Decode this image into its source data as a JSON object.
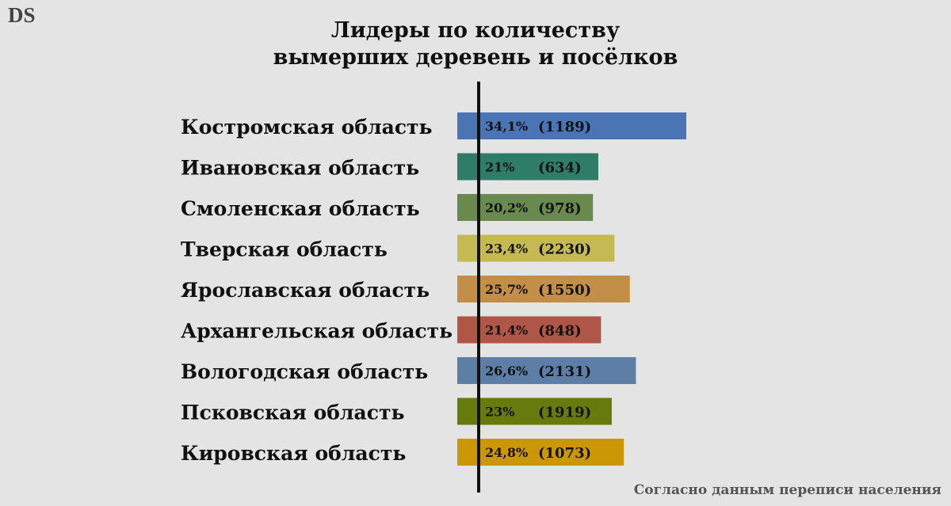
{
  "logo": "DS",
  "source_note": "Согласно данным переписи населения",
  "chart_data": {
    "type": "bar",
    "orientation": "horizontal",
    "title_lines": [
      "Лидеры по количеству",
      "вымерших деревень и посёлков"
    ],
    "categories": [
      "Костромская область",
      "Ивановская область",
      "Смоленская область",
      "Тверская область",
      "Ярославская область",
      "Архангельская область",
      "Вологодская область",
      "Псковская область",
      "Кировская область"
    ],
    "values": [
      34.1,
      21,
      20.2,
      23.4,
      25.7,
      21.4,
      26.6,
      23,
      24.8
    ],
    "counts": [
      1189,
      634,
      978,
      2230,
      1550,
      848,
      2131,
      1919,
      1073
    ],
    "percent_labels": [
      "34,1%",
      "21%",
      "20,2%",
      "23,4%",
      "25,7%",
      "21,4%",
      "26,6%",
      "23%",
      "24,8%"
    ],
    "count_labels": [
      "(1189)",
      "(634)",
      "(978)",
      "(2230)",
      "(1550)",
      "(848)",
      "(2131)",
      "(1919)",
      "(1073)"
    ],
    "colors": [
      "#4a74b4",
      "#2f7d69",
      "#698a4e",
      "#c5b954",
      "#c38f48",
      "#b05646",
      "#5d7fa6",
      "#677a0d",
      "#cc9705"
    ],
    "xlim": [
      0,
      34.1
    ],
    "grid": false,
    "legend": "none"
  }
}
